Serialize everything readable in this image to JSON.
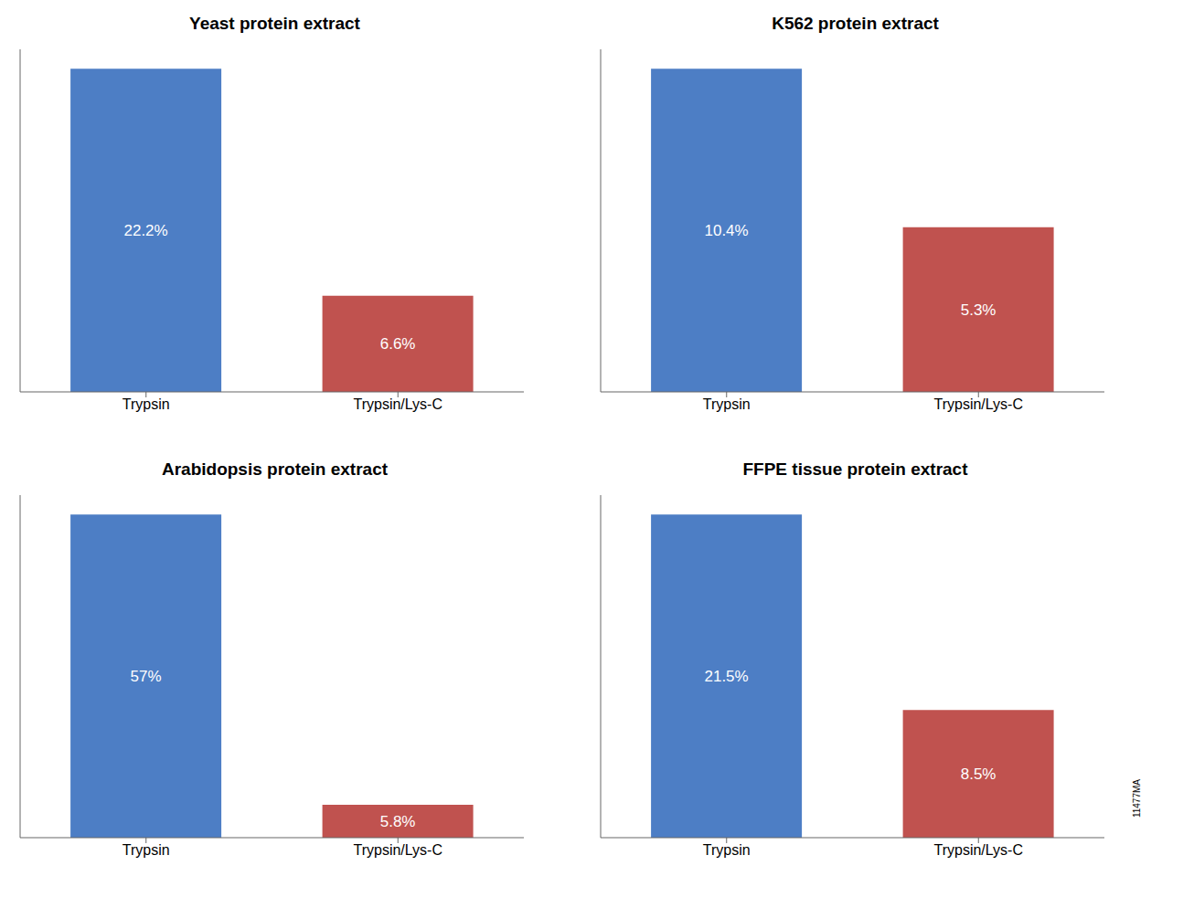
{
  "chart_data": [
    {
      "type": "bar",
      "title": "Yeast protein extract",
      "categories": [
        "Trypsin",
        "Trypsin/Lys-C"
      ],
      "values": [
        22.2,
        6.6
      ],
      "value_labels": [
        "22.2%",
        "6.6%"
      ],
      "colors": [
        "#4D7EC5",
        "#C0524F"
      ],
      "ylim": [
        0,
        23.532
      ],
      "grid": false,
      "data_labels": true,
      "tick_labels": "x"
    },
    {
      "type": "bar",
      "title": "K562 protein extract",
      "categories": [
        "Trypsin",
        "Trypsin/Lys-C"
      ],
      "values": [
        10.4,
        5.3
      ],
      "value_labels": [
        "10.4%",
        "5.3%"
      ],
      "colors": [
        "#4D7EC5",
        "#C0524F"
      ],
      "ylim": [
        0,
        11.024
      ],
      "grid": false,
      "data_labels": true,
      "tick_labels": "x"
    },
    {
      "type": "bar",
      "title": "Arabidopsis protein extract",
      "categories": [
        "Trypsin",
        "Trypsin/Lys-C"
      ],
      "values": [
        57,
        5.8
      ],
      "value_labels": [
        "57%",
        "5.8%"
      ],
      "colors": [
        "#4D7EC5",
        "#C0524F"
      ],
      "ylim": [
        0,
        60.42
      ],
      "grid": false,
      "data_labels": true,
      "tick_labels": "x"
    },
    {
      "type": "bar",
      "title": "FFPE tissue protein extract",
      "categories": [
        "Trypsin",
        "Trypsin/Lys-C"
      ],
      "values": [
        21.5,
        8.5
      ],
      "value_labels": [
        "21.5%",
        "8.5%"
      ],
      "colors": [
        "#4D7EC5",
        "#C0524F"
      ],
      "ylim": [
        0,
        22.79
      ],
      "grid": false,
      "data_labels": true,
      "tick_labels": "x",
      "annotations": [
        "11477MA"
      ]
    }
  ]
}
